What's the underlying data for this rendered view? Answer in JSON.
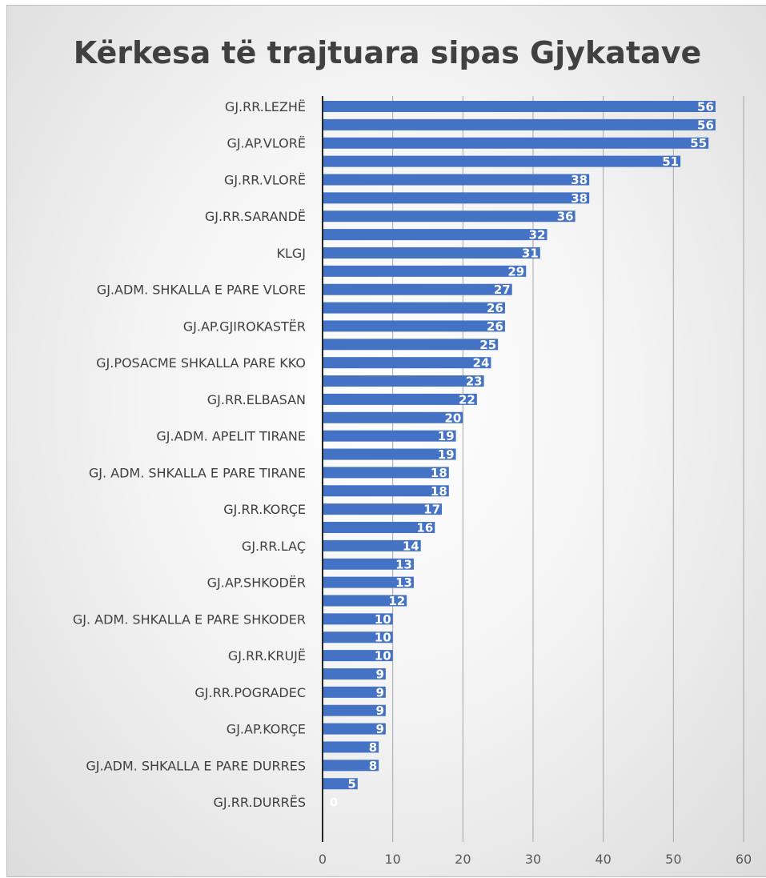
{
  "chart_data": {
    "type": "bar",
    "orientation": "horizontal",
    "title": "Kërkesa të trajtuara sipas Gjykatave",
    "xlabel": "",
    "ylabel": "",
    "xlim": [
      0,
      60
    ],
    "x_ticks": [
      "0",
      "10",
      "20",
      "30",
      "40",
      "50",
      "60"
    ],
    "grid": "vertical",
    "legend": "none",
    "bar_color": "#4472c4",
    "label_color": "#ffffff",
    "categories": [
      "GJ.RR.LEZHË",
      "",
      "GJ.AP.VLORË",
      "",
      "GJ.RR.VLORË",
      "",
      "GJ.RR.SARANDË",
      "",
      "KLGJ",
      "",
      "GJ.ADM. SHKALLA E PARE VLORE",
      "",
      "GJ.AP.GJIROKASTËR",
      "",
      "GJ.POSACME SHKALLA PARE KKO",
      "",
      "GJ.RR.ELBASAN",
      "",
      "GJ.ADM. APELIT TIRANE",
      "",
      "GJ. ADM. SHKALLA E PARE TIRANE",
      "",
      "GJ.RR.KORÇE",
      "",
      "GJ.RR.LAÇ",
      "",
      "GJ.AP.SHKODËR",
      "",
      "GJ. ADM. SHKALLA E PARE SHKODER",
      "",
      "GJ.RR.KRUJË",
      "",
      "GJ.RR.POGRADEC",
      "",
      "GJ.AP.KORÇE",
      "",
      "GJ.ADM. SHKALLA E PARE DURRES",
      "",
      "GJ.RR.DURRËS"
    ],
    "values": [
      56,
      56,
      55,
      51,
      38,
      38,
      36,
      32,
      31,
      29,
      27,
      26,
      26,
      25,
      24,
      23,
      22,
      20,
      19,
      19,
      18,
      18,
      17,
      16,
      14,
      13,
      13,
      12,
      10,
      10,
      10,
      9,
      9,
      9,
      9,
      8,
      8,
      5,
      0
    ],
    "value_labels": [
      "56",
      "56",
      "55",
      "51",
      "38",
      "38",
      "36",
      "32",
      "31",
      "29",
      "27",
      "26",
      "26",
      "25",
      "24",
      "23",
      "22",
      "20",
      "19",
      "19",
      "18",
      "18",
      "17",
      "16",
      "14",
      "13",
      "13",
      "12",
      "10",
      "10",
      "10",
      "9",
      "9",
      "9",
      "9",
      "8",
      "8",
      "5",
      "0"
    ]
  }
}
